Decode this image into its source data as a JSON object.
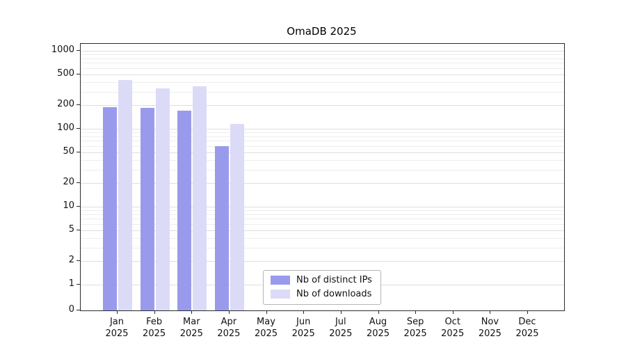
{
  "chart_data": {
    "type": "bar",
    "title": "OmaDB 2025",
    "categories": [
      "Jan",
      "Feb",
      "Mar",
      "Apr",
      "May",
      "Jun",
      "Jul",
      "Aug",
      "Sep",
      "Oct",
      "Nov",
      "Dec"
    ],
    "x_tick_year": "2025",
    "series": [
      {
        "name": "Nb of distinct IPs",
        "color": "#9a9aec",
        "values": [
          190,
          185,
          170,
          60,
          0,
          0,
          0,
          0,
          0,
          0,
          0,
          0
        ]
      },
      {
        "name": "Nb of downloads",
        "color": "#dbdbf8",
        "values": [
          420,
          330,
          350,
          115,
          0,
          0,
          0,
          0,
          0,
          0,
          0,
          0
        ]
      }
    ],
    "yscale": "symlog",
    "yticks": [
      0,
      1,
      2,
      5,
      10,
      20,
      50,
      100,
      200,
      500,
      1000
    ],
    "ylim": [
      0,
      1250
    ],
    "grid": true,
    "legend_position": "lower center"
  }
}
